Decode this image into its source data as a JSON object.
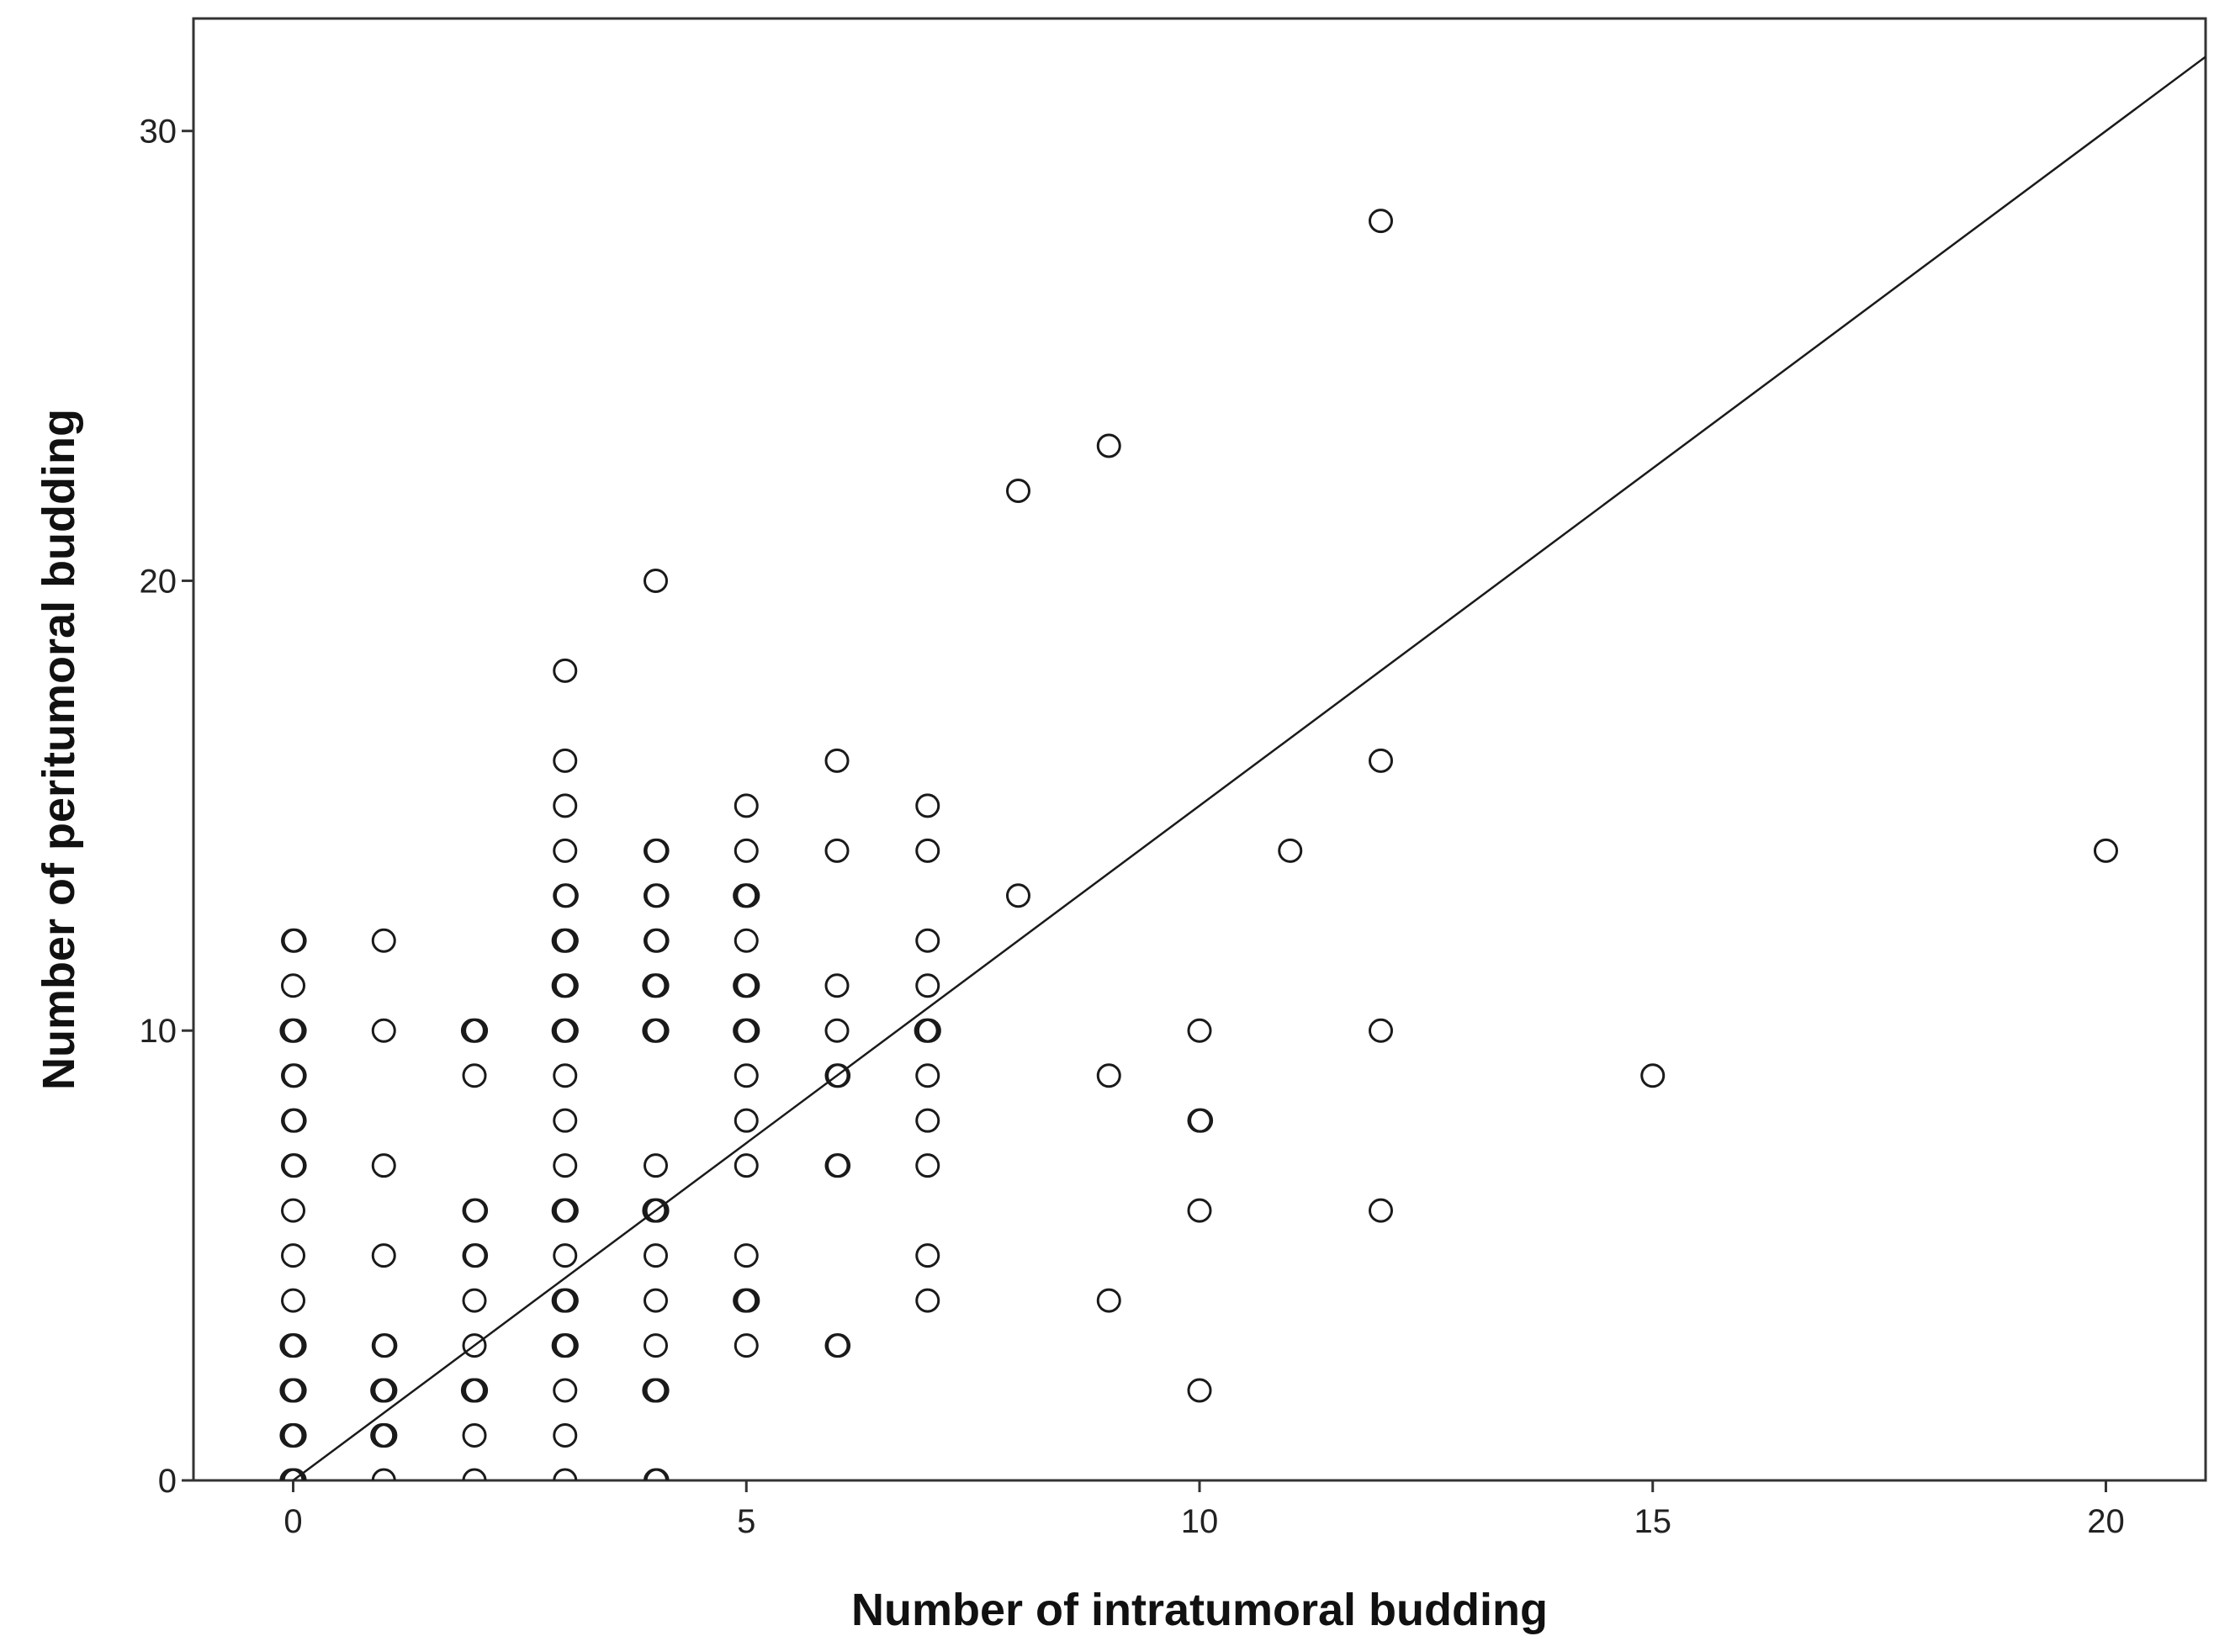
{
  "chart_data": {
    "type": "scatter",
    "title": "",
    "xlabel": "Number of intratumoral budding",
    "ylabel": "Number of peritumoral budding",
    "xlim": [
      -1.1,
      21.1
    ],
    "ylim": [
      0,
      32.5
    ],
    "xticks": [
      0,
      5,
      10,
      15,
      20
    ],
    "yticks": [
      0,
      10,
      20,
      30
    ],
    "grid": false,
    "legend": "none",
    "marker": "open-circle",
    "marker_color": "#1a1a1a",
    "line_color": "#1a1a1a",
    "frame_color": "#333333",
    "points": [
      {
        "x": 0,
        "y": 0,
        "n": 3
      },
      {
        "x": 0,
        "y": 1,
        "n": 3
      },
      {
        "x": 0,
        "y": 2,
        "n": 3
      },
      {
        "x": 0,
        "y": 3,
        "n": 3
      },
      {
        "x": 0,
        "y": 4,
        "n": 1
      },
      {
        "x": 0,
        "y": 5,
        "n": 1
      },
      {
        "x": 0,
        "y": 6,
        "n": 1
      },
      {
        "x": 0,
        "y": 7,
        "n": 2
      },
      {
        "x": 0,
        "y": 8,
        "n": 2
      },
      {
        "x": 0,
        "y": 9,
        "n": 2
      },
      {
        "x": 0,
        "y": 10,
        "n": 3
      },
      {
        "x": 0,
        "y": 11,
        "n": 1
      },
      {
        "x": 0,
        "y": 12,
        "n": 2
      },
      {
        "x": 1,
        "y": 0,
        "n": 1
      },
      {
        "x": 1,
        "y": 1,
        "n": 3
      },
      {
        "x": 1,
        "y": 2,
        "n": 3
      },
      {
        "x": 1,
        "y": 3,
        "n": 2
      },
      {
        "x": 1,
        "y": 5,
        "n": 1
      },
      {
        "x": 1,
        "y": 7,
        "n": 1
      },
      {
        "x": 1,
        "y": 10,
        "n": 1
      },
      {
        "x": 1,
        "y": 12,
        "n": 1
      },
      {
        "x": 2,
        "y": 0,
        "n": 1
      },
      {
        "x": 2,
        "y": 1,
        "n": 1
      },
      {
        "x": 2,
        "y": 2,
        "n": 3
      },
      {
        "x": 2,
        "y": 3,
        "n": 1
      },
      {
        "x": 2,
        "y": 4,
        "n": 1
      },
      {
        "x": 2,
        "y": 5,
        "n": 2
      },
      {
        "x": 2,
        "y": 6,
        "n": 2
      },
      {
        "x": 2,
        "y": 9,
        "n": 1
      },
      {
        "x": 2,
        "y": 10,
        "n": 3
      },
      {
        "x": 3,
        "y": 0,
        "n": 1
      },
      {
        "x": 3,
        "y": 1,
        "n": 1
      },
      {
        "x": 3,
        "y": 2,
        "n": 1
      },
      {
        "x": 3,
        "y": 3,
        "n": 3
      },
      {
        "x": 3,
        "y": 4,
        "n": 3
      },
      {
        "x": 3,
        "y": 5,
        "n": 1
      },
      {
        "x": 3,
        "y": 6,
        "n": 3
      },
      {
        "x": 3,
        "y": 7,
        "n": 1
      },
      {
        "x": 3,
        "y": 8,
        "n": 1
      },
      {
        "x": 3,
        "y": 9,
        "n": 1
      },
      {
        "x": 3,
        "y": 10,
        "n": 3
      },
      {
        "x": 3,
        "y": 11,
        "n": 3
      },
      {
        "x": 3,
        "y": 12,
        "n": 3
      },
      {
        "x": 3,
        "y": 13,
        "n": 2
      },
      {
        "x": 3,
        "y": 14,
        "n": 1
      },
      {
        "x": 3,
        "y": 15,
        "n": 1
      },
      {
        "x": 3,
        "y": 16,
        "n": 1
      },
      {
        "x": 3,
        "y": 18,
        "n": 1
      },
      {
        "x": 4,
        "y": 0,
        "n": 2
      },
      {
        "x": 4,
        "y": 2,
        "n": 3
      },
      {
        "x": 4,
        "y": 3,
        "n": 1
      },
      {
        "x": 4,
        "y": 4,
        "n": 1
      },
      {
        "x": 4,
        "y": 5,
        "n": 1
      },
      {
        "x": 4,
        "y": 6,
        "n": 3
      },
      {
        "x": 4,
        "y": 7,
        "n": 1
      },
      {
        "x": 4,
        "y": 10,
        "n": 3
      },
      {
        "x": 4,
        "y": 11,
        "n": 3
      },
      {
        "x": 4,
        "y": 12,
        "n": 2
      },
      {
        "x": 4,
        "y": 13,
        "n": 2
      },
      {
        "x": 4,
        "y": 14,
        "n": 2
      },
      {
        "x": 4,
        "y": 20,
        "n": 1
      },
      {
        "x": 5,
        "y": 3,
        "n": 1
      },
      {
        "x": 5,
        "y": 4,
        "n": 3
      },
      {
        "x": 5,
        "y": 5,
        "n": 1
      },
      {
        "x": 5,
        "y": 7,
        "n": 1
      },
      {
        "x": 5,
        "y": 8,
        "n": 1
      },
      {
        "x": 5,
        "y": 9,
        "n": 1
      },
      {
        "x": 5,
        "y": 10,
        "n": 3
      },
      {
        "x": 5,
        "y": 11,
        "n": 3
      },
      {
        "x": 5,
        "y": 12,
        "n": 1
      },
      {
        "x": 5,
        "y": 13,
        "n": 3
      },
      {
        "x": 5,
        "y": 14,
        "n": 1
      },
      {
        "x": 5,
        "y": 15,
        "n": 1
      },
      {
        "x": 6,
        "y": 3,
        "n": 2
      },
      {
        "x": 6,
        "y": 7,
        "n": 2
      },
      {
        "x": 6,
        "y": 9,
        "n": 2
      },
      {
        "x": 6,
        "y": 10,
        "n": 1
      },
      {
        "x": 6,
        "y": 11,
        "n": 1
      },
      {
        "x": 6,
        "y": 14,
        "n": 1
      },
      {
        "x": 6,
        "y": 16,
        "n": 1
      },
      {
        "x": 7,
        "y": 4,
        "n": 1
      },
      {
        "x": 7,
        "y": 5,
        "n": 1
      },
      {
        "x": 7,
        "y": 7,
        "n": 1
      },
      {
        "x": 7,
        "y": 8,
        "n": 1
      },
      {
        "x": 7,
        "y": 9,
        "n": 1
      },
      {
        "x": 7,
        "y": 10,
        "n": 3
      },
      {
        "x": 7,
        "y": 11,
        "n": 1
      },
      {
        "x": 7,
        "y": 12,
        "n": 1
      },
      {
        "x": 7,
        "y": 14,
        "n": 1
      },
      {
        "x": 7,
        "y": 15,
        "n": 1
      },
      {
        "x": 8,
        "y": 13,
        "n": 1
      },
      {
        "x": 8,
        "y": 22,
        "n": 1
      },
      {
        "x": 9,
        "y": 4,
        "n": 1
      },
      {
        "x": 9,
        "y": 9,
        "n": 1
      },
      {
        "x": 9,
        "y": 23,
        "n": 1
      },
      {
        "x": 10,
        "y": 2,
        "n": 1
      },
      {
        "x": 10,
        "y": 6,
        "n": 1
      },
      {
        "x": 10,
        "y": 8,
        "n": 2
      },
      {
        "x": 10,
        "y": 10,
        "n": 1
      },
      {
        "x": 11,
        "y": 14,
        "n": 1
      },
      {
        "x": 12,
        "y": 6,
        "n": 1
      },
      {
        "x": 12,
        "y": 10,
        "n": 1
      },
      {
        "x": 12,
        "y": 16,
        "n": 1
      },
      {
        "x": 12,
        "y": 28,
        "n": 1
      },
      {
        "x": 15,
        "y": 9,
        "n": 1
      },
      {
        "x": 20,
        "y": 14,
        "n": 1
      }
    ],
    "fit_line": {
      "intercept": 0,
      "slope": 1.5
    }
  }
}
